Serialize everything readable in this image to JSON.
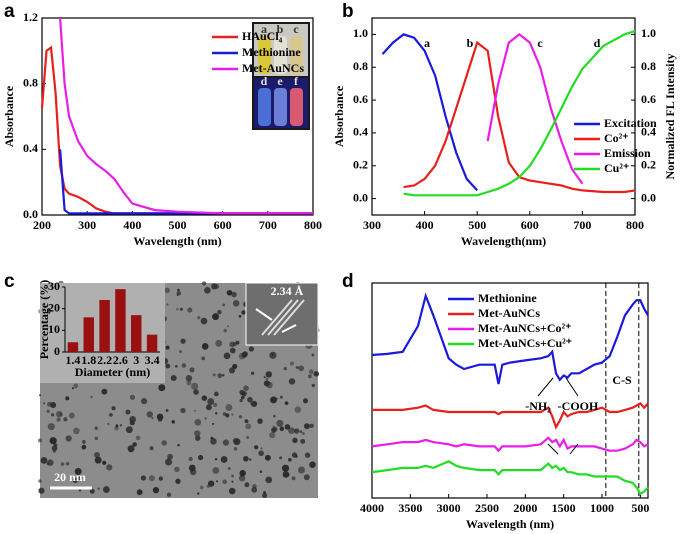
{
  "chart_data": [
    {
      "type": "line",
      "panel_label": "a",
      "xlabel": "Wavelength (nm)",
      "ylabel": "Absorbance",
      "x": [
        200,
        210,
        220,
        230,
        240,
        250,
        260,
        280,
        300,
        320,
        340,
        360,
        380,
        400,
        450,
        500,
        600,
        700,
        800
      ],
      "xlim": [
        200,
        800
      ],
      "xticks": [
        200,
        300,
        400,
        500,
        600,
        700,
        800
      ],
      "ylim": [
        0,
        1.2
      ],
      "yticks": [
        {
          "value": 0,
          "label": "0.0"
        },
        {
          "value": 0.4,
          "label": "0.4"
        },
        {
          "value": 0.8,
          "label": "0.8"
        },
        {
          "value": 1.2,
          "label": "1.2"
        }
      ],
      "legend": "upper center",
      "inset_labels": [
        "a",
        "b",
        "c",
        "d",
        "e",
        "f"
      ],
      "series": [
        {
          "name": "HAuCl₄",
          "color": "#e8201c",
          "values": [
            0.65,
            1.0,
            1.02,
            0.75,
            0.3,
            0.16,
            0.13,
            0.11,
            0.08,
            0.04,
            0.02,
            0.01,
            0.01,
            0.01,
            0.01,
            0.01,
            0.01,
            0.01,
            0.01
          ]
        },
        {
          "name": "Methionine",
          "color": "#1a1adc",
          "values": [
            null,
            null,
            null,
            null,
            0.4,
            0.03,
            0.01,
            0.01,
            0.01,
            0.01,
            0.01,
            0.01,
            0.01,
            0.01,
            0.01,
            0.01,
            0.01,
            0.01,
            0.01
          ]
        },
        {
          "name": "Met-AuNCs",
          "color": "#e81ee8",
          "values": [
            null,
            null,
            null,
            null,
            1.2,
            0.8,
            0.6,
            0.45,
            0.36,
            0.31,
            0.27,
            0.22,
            0.14,
            0.07,
            0.03,
            0.02,
            0.01,
            0.01,
            0.01
          ]
        }
      ]
    },
    {
      "type": "line",
      "panel_label": "b",
      "xlabel": "Wavelength(nm)",
      "ylabel": "Absorbance",
      "y2label": "Normalized FL Intensity",
      "x": [
        320,
        340,
        360,
        380,
        400,
        420,
        440,
        460,
        480,
        500,
        520,
        540,
        560,
        580,
        600,
        620,
        640,
        660,
        680,
        700,
        740,
        780,
        800
      ],
      "xlim": [
        300,
        800
      ],
      "xticks": [
        300,
        400,
        500,
        600,
        700,
        800
      ],
      "ylim": [
        -0.1,
        1.1
      ],
      "yticks": [
        {
          "value": 0,
          "label": "0.0"
        },
        {
          "value": 0.2,
          "label": "0.2"
        },
        {
          "value": 0.4,
          "label": "0.4"
        },
        {
          "value": 0.6,
          "label": "0.6"
        },
        {
          "value": 0.8,
          "label": "0.8"
        },
        {
          "value": 1.0,
          "label": "1.0"
        }
      ],
      "y2lim": [
        -0.1,
        1.1
      ],
      "y2ticks": [
        {
          "value": 0,
          "label": "0.0"
        },
        {
          "value": 0.2,
          "label": "0.2"
        },
        {
          "value": 0.4,
          "label": "0.4"
        },
        {
          "value": 0.6,
          "label": "0.6"
        },
        {
          "value": 0.8,
          "label": "0.8"
        },
        {
          "value": 1.0,
          "label": "1.0"
        }
      ],
      "legend": "lower right",
      "annotations": [
        "a",
        "b",
        "c",
        "d"
      ],
      "series": [
        {
          "name": "Excitation",
          "color": "#1a1adc",
          "values": [
            0.88,
            0.95,
            1.0,
            0.98,
            0.9,
            0.75,
            0.5,
            0.28,
            0.12,
            0.05,
            null,
            null,
            null,
            null,
            null,
            null,
            null,
            null,
            null,
            null,
            null,
            null,
            null
          ]
        },
        {
          "name": "Co²⁺",
          "color": "#e8201c",
          "values": [
            null,
            null,
            0.07,
            0.08,
            0.12,
            0.2,
            0.35,
            0.55,
            0.75,
            0.95,
            0.9,
            0.5,
            0.22,
            0.13,
            0.11,
            0.1,
            0.09,
            0.08,
            0.06,
            0.05,
            0.04,
            0.04,
            0.05
          ]
        },
        {
          "name": "Emission",
          "color": "#e81ee8",
          "values": [
            null,
            null,
            null,
            null,
            null,
            null,
            null,
            null,
            null,
            null,
            0.35,
            0.7,
            0.95,
            1.0,
            0.95,
            0.8,
            0.55,
            0.35,
            0.18,
            0.09,
            null,
            null,
            null
          ]
        },
        {
          "name": "Cu²⁺",
          "color": "#22dd22",
          "axis": "y2",
          "values": [
            null,
            null,
            0.03,
            0.02,
            0.02,
            0.02,
            0.02,
            0.02,
            0.02,
            0.02,
            0.04,
            0.06,
            0.09,
            0.13,
            0.2,
            0.3,
            0.42,
            0.55,
            0.68,
            0.79,
            0.93,
            1.0,
            1.02
          ]
        }
      ]
    },
    {
      "type": "bar",
      "panel_label": "c",
      "xlabel": "Diameter (nm)",
      "ylabel": "Percentage (%)",
      "lattice_label": "2.34 Å",
      "scale_bar": "20 nm",
      "categories": [
        "1.4",
        "1.8",
        "2.2",
        "2.6",
        "3",
        "3.4"
      ],
      "values": [
        4.5,
        16,
        24,
        29,
        17,
        8
      ],
      "color": "#9a1010",
      "ylim": [
        0,
        30
      ],
      "yticks": [
        0,
        10,
        20,
        30
      ]
    },
    {
      "type": "line",
      "panel_label": "d",
      "xlabel": "Wavelength (nm)",
      "x": [
        4000,
        3800,
        3600,
        3400,
        3300,
        3200,
        3000,
        2900,
        2800,
        2600,
        2400,
        2350,
        2300,
        2200,
        2000,
        1800,
        1700,
        1650,
        1600,
        1550,
        1500,
        1450,
        1400,
        1300,
        1200,
        1100,
        1000,
        900,
        800,
        700,
        600,
        550,
        500,
        450,
        400
      ],
      "xlim": [
        4000,
        400
      ],
      "xticks": [
        4000,
        3500,
        3000,
        2500,
        2000,
        1500,
        1000,
        500
      ],
      "ylim": [
        0,
        1
      ],
      "legend": "upper left",
      "vlines": [
        950,
        520
      ],
      "annotations": [
        "-NH₂",
        "-COOH",
        "C-S"
      ],
      "series": [
        {
          "name": "Methionine",
          "color": "#1a1adc",
          "values": [
            0.665,
            0.67,
            0.68,
            0.8,
            0.94,
            0.85,
            0.65,
            0.62,
            0.6,
            0.62,
            0.62,
            0.53,
            0.62,
            0.63,
            0.64,
            0.65,
            0.66,
            0.68,
            0.58,
            0.55,
            0.57,
            0.56,
            0.58,
            0.58,
            0.6,
            0.62,
            0.63,
            0.66,
            0.75,
            0.85,
            0.9,
            0.92,
            0.92,
            0.88,
            0.85
          ]
        },
        {
          "name": "Met-AuNCs",
          "color": "#e8201c",
          "values": [
            0.41,
            0.41,
            0.41,
            0.42,
            0.43,
            0.41,
            0.4,
            0.4,
            0.4,
            0.4,
            0.4,
            0.39,
            0.4,
            0.4,
            0.4,
            0.4,
            0.42,
            0.38,
            0.33,
            0.36,
            0.4,
            0.38,
            0.39,
            0.4,
            0.4,
            0.41,
            0.42,
            0.4,
            0.4,
            0.41,
            0.42,
            0.43,
            0.44,
            0.42,
            0.44
          ]
        },
        {
          "name": "Met-AuNCs+Co²⁺",
          "color": "#e81ee8",
          "values": [
            0.24,
            0.25,
            0.26,
            0.26,
            0.27,
            0.26,
            0.25,
            0.24,
            0.25,
            0.24,
            0.24,
            0.22,
            0.24,
            0.24,
            0.24,
            0.25,
            0.28,
            0.26,
            0.27,
            0.24,
            0.27,
            0.23,
            0.24,
            0.24,
            0.24,
            0.24,
            0.23,
            0.22,
            0.22,
            0.23,
            0.25,
            0.27,
            0.26,
            0.24,
            0.25
          ]
        },
        {
          "name": "Met-AuNCs+Cu²⁺",
          "color": "#22dd22",
          "values": [
            0.12,
            0.13,
            0.14,
            0.14,
            0.15,
            0.14,
            0.17,
            0.15,
            0.14,
            0.13,
            0.13,
            0.11,
            0.13,
            0.13,
            0.13,
            0.13,
            0.16,
            0.14,
            0.15,
            0.13,
            0.14,
            0.12,
            0.12,
            0.11,
            0.11,
            0.1,
            0.1,
            0.1,
            0.1,
            0.08,
            0.07,
            0.05,
            0.02,
            0.03,
            0.05
          ]
        }
      ]
    }
  ]
}
